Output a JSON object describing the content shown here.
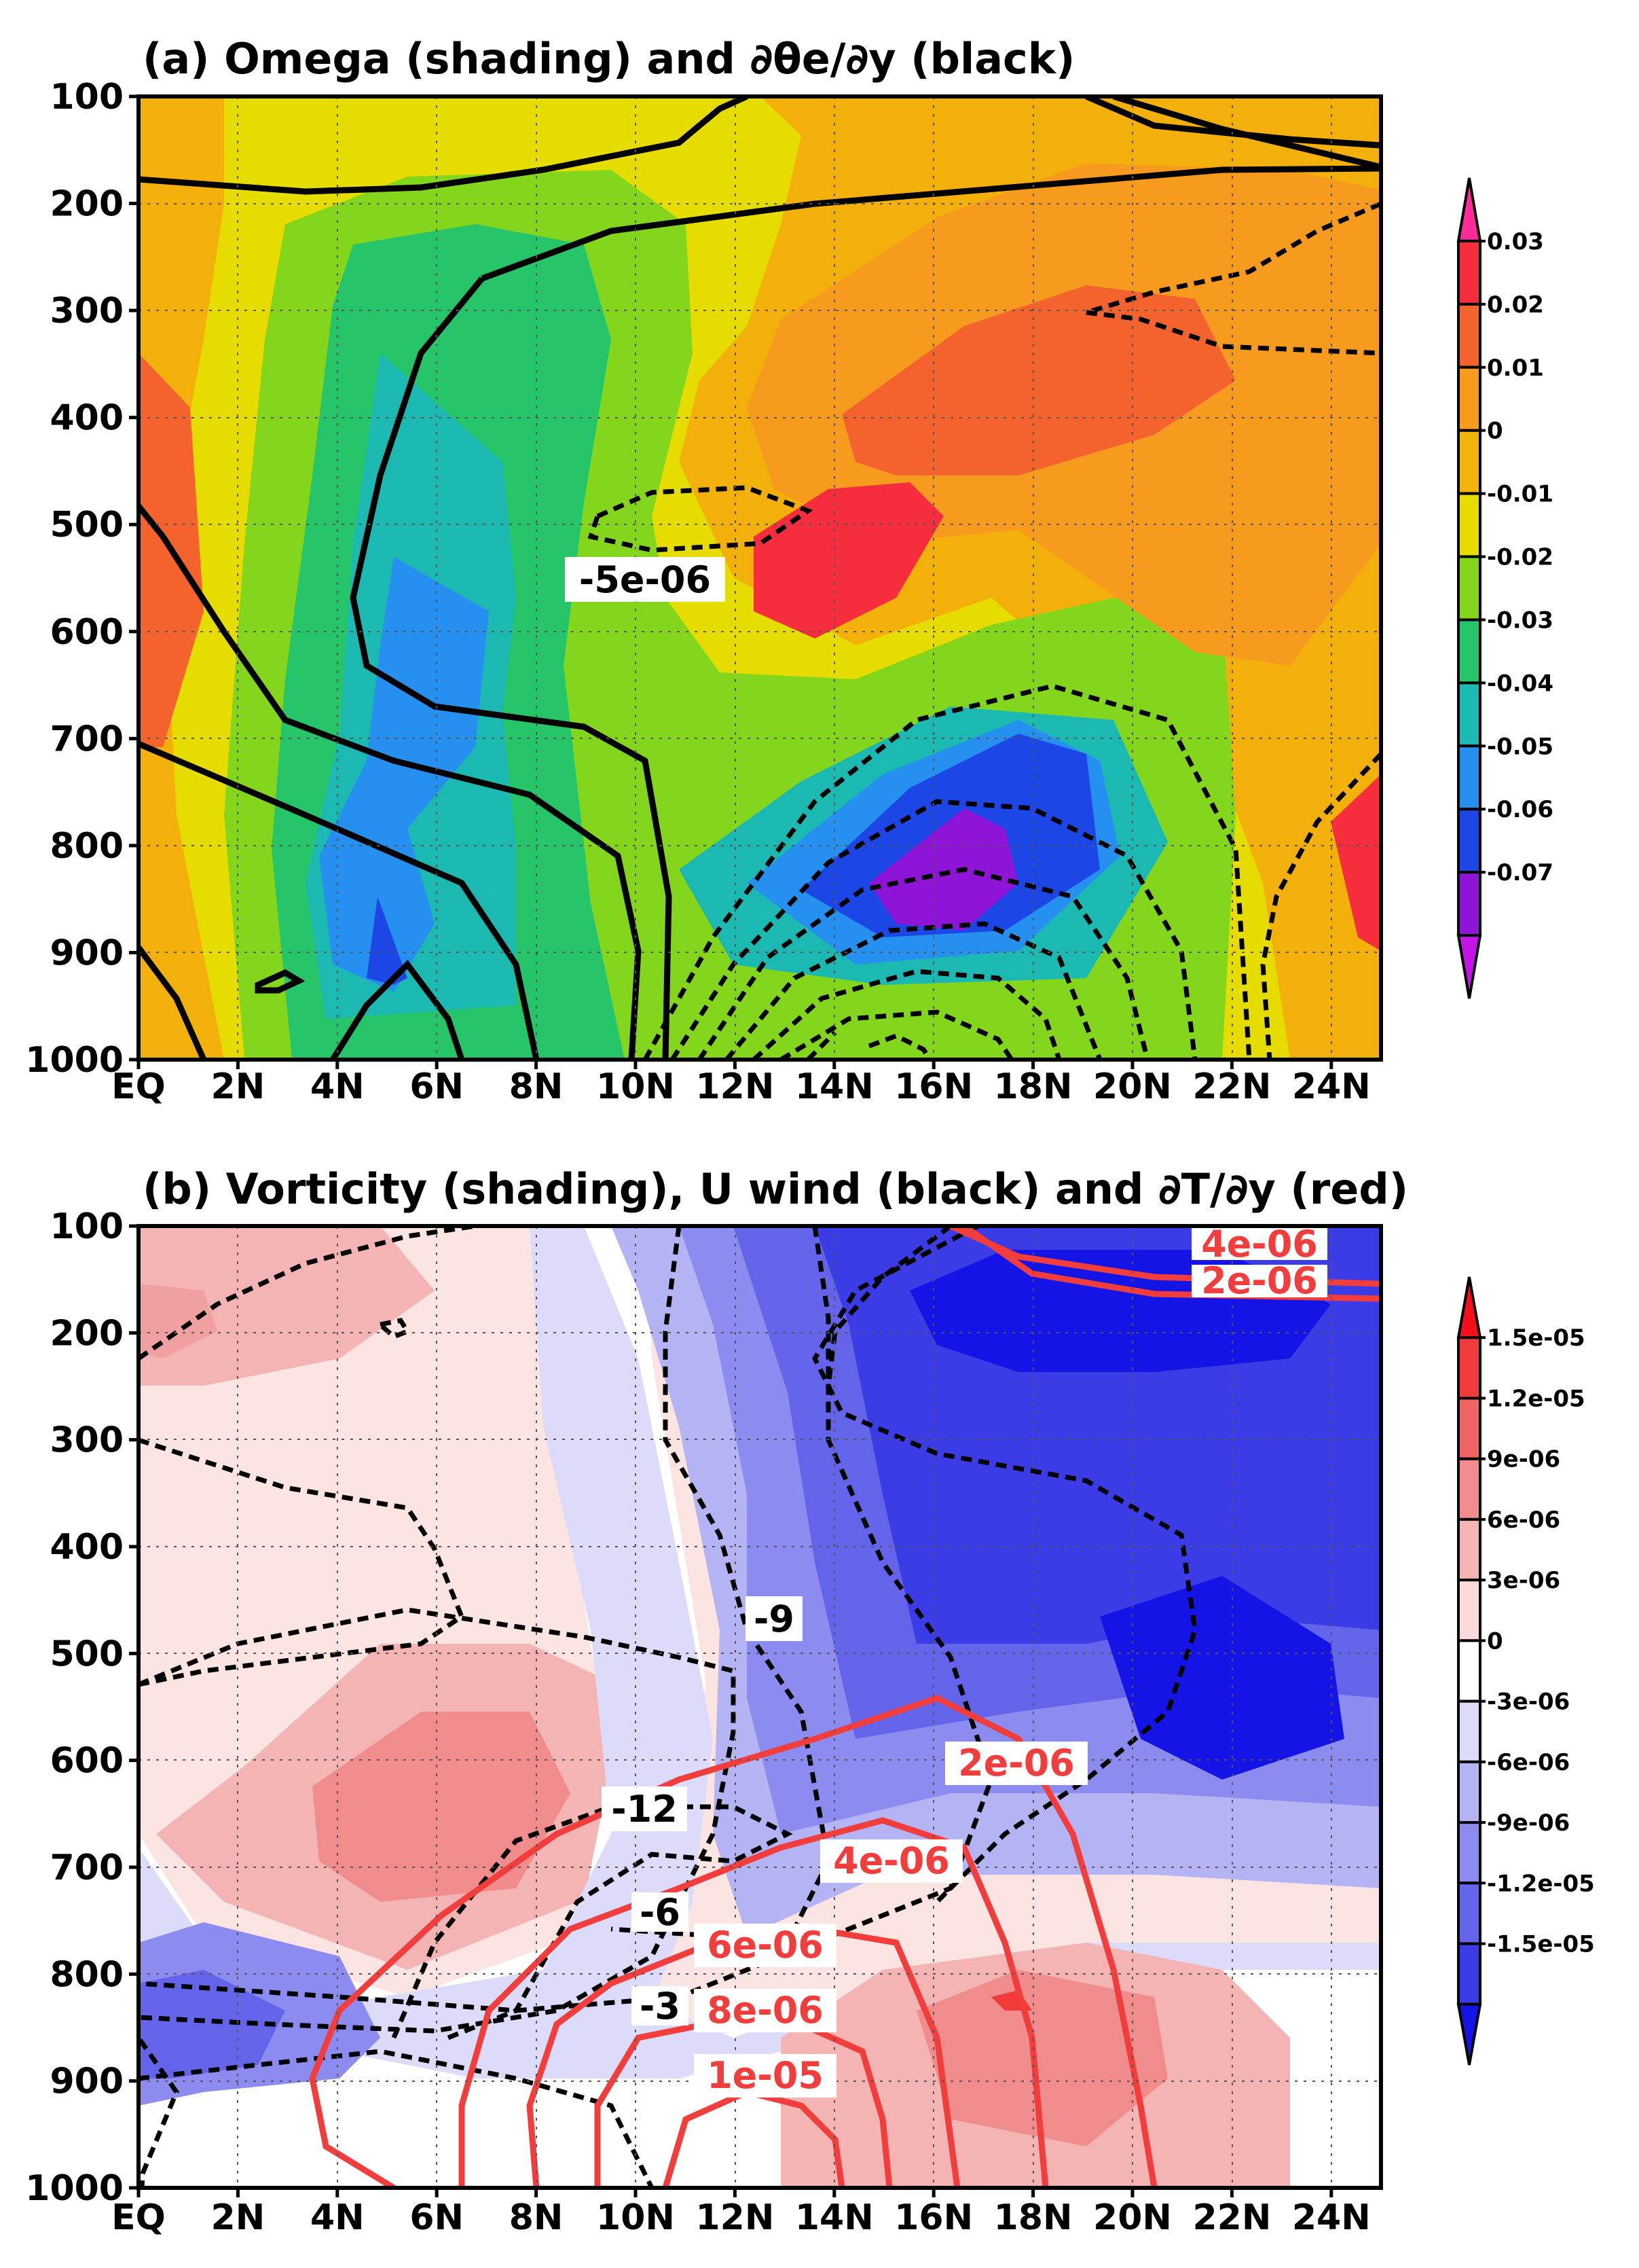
{
  "chart_data": [
    {
      "type": "contour",
      "title": "(a) Omega (shading) and ∂θe/∂y (black)",
      "x_ticks": [
        "EQ",
        "2N",
        "4N",
        "6N",
        "8N",
        "10N",
        "12N",
        "14N",
        "16N",
        "18N",
        "20N",
        "22N",
        "24N"
      ],
      "x_range": [
        0,
        25
      ],
      "y_ticks": [
        "100",
        "200",
        "300",
        "400",
        "500",
        "600",
        "700",
        "800",
        "900",
        "1000"
      ],
      "y_range": [
        1000,
        100
      ],
      "grid": true,
      "colorbar_ticks": [
        "0.03",
        "0.02",
        "0.01",
        "0",
        "-0.01",
        "-0.02",
        "-0.03",
        "-0.04",
        "-0.05",
        "-0.06",
        "-0.07"
      ],
      "colorbar_colors": [
        "#ff2a9c",
        "#f52d3c",
        "#f4622e",
        "#f79b1e",
        "#f2b40a",
        "#e6dc00",
        "#84d61c",
        "#26c569",
        "#1bb9b2",
        "#2590ef",
        "#1c47e6",
        "#8e15d8",
        "#c414e8"
      ],
      "contour_labels": [
        "-5e-06"
      ],
      "panel_background": "#f4b00a",
      "label_stroke": "#000000"
    },
    {
      "type": "contour",
      "title": "(b) Vorticity (shading), U wind (black) and ∂T/∂y (red)",
      "x_ticks": [
        "EQ",
        "2N",
        "4N",
        "6N",
        "8N",
        "10N",
        "12N",
        "14N",
        "16N",
        "18N",
        "20N",
        "22N",
        "24N"
      ],
      "x_range": [
        0,
        25
      ],
      "y_ticks": [
        "100",
        "200",
        "300",
        "400",
        "500",
        "600",
        "700",
        "800",
        "900",
        "1000"
      ],
      "y_range": [
        1000,
        100
      ],
      "grid": true,
      "colorbar_ticks": [
        "1.5e-05",
        "1.2e-05",
        "9e-06",
        "6e-06",
        "3e-06",
        "0",
        "-3e-06",
        "-6e-06",
        "-9e-06",
        "-1.2e-05",
        "-1.5e-05"
      ],
      "colorbar_colors": [
        "#f50f19",
        "#f23c3c",
        "#f06464",
        "#f28c8c",
        "#f5b4b4",
        "#fadada",
        "#ffffff",
        "#dcdcfa",
        "#b4b4f5",
        "#8c8cf0",
        "#6464eb",
        "#3c3ce6",
        "#1414e6"
      ],
      "black_contour_labels": [
        "-9",
        "-12",
        "-6",
        "-3"
      ],
      "red_contour_labels": [
        "4e-06",
        "2e-06",
        "2e-06",
        "4e-06",
        "6e-06",
        "8e-06",
        "1e-05"
      ],
      "panel_background": "#fbe4e2",
      "black_stroke": "#000000",
      "red_stroke": "#f23d3d"
    }
  ]
}
